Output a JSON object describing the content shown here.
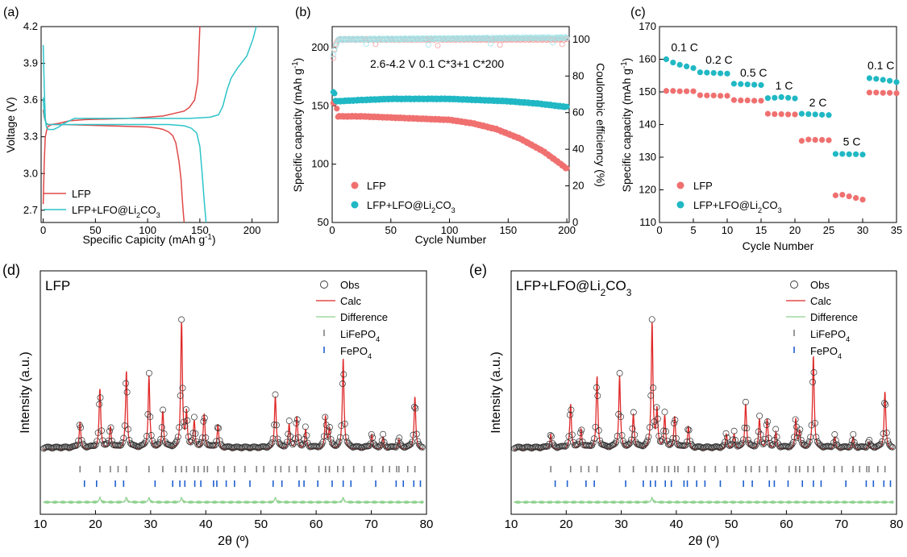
{
  "colors": {
    "lfp": "#e04848",
    "lfo": "#2ec4c8",
    "lfp_dot": "#f07070",
    "lfo_dot": "#20b8c4",
    "ce_lfp": "#f4a0a0",
    "ce_lfo": "#9ee4e8",
    "obs": "#333333",
    "calc": "#e02828",
    "diff": "#8fd08f",
    "tick_lfp": "#808080",
    "tick_fepo": "#1e5fcf"
  },
  "chart_data": [
    {
      "panel": "(a)",
      "type": "line",
      "xlabel": "Specific Capicity (mAh g",
      "xlabel_sup": "-1",
      "xlabel_end": ")",
      "ylabel": "Voltage (V)",
      "xlim": [
        -2,
        225
      ],
      "ylim": [
        2.6,
        4.2
      ],
      "xticks": [
        "0",
        "50",
        "100",
        "150",
        "200"
      ],
      "yticks": [
        "2.7",
        "3.0",
        "3.3",
        "3.6",
        "3.9",
        "4.2"
      ],
      "legend": {
        "placement": "bottom-left",
        "entries": [
          "LFP",
          "LFP+LFO@Li2CO3"
        ],
        "lfo_main": "LFP+LFO@Li",
        "lfo_sub": "2",
        "lfo_end": "CO",
        "lfo_sub2": "3"
      },
      "series": [
        {
          "name": "LFP",
          "curves": [
            {
              "x": [
                0,
                1,
                2,
                3,
                4,
                6,
                10,
                20,
                40,
                60,
                80,
                100,
                110,
                115,
                120,
                124,
                127,
                130,
                132,
                133,
                134,
                135
              ],
              "y": [
                3.52,
                3.46,
                3.43,
                3.41,
                3.4,
                3.4,
                3.4,
                3.4,
                3.395,
                3.39,
                3.385,
                3.38,
                3.37,
                3.36,
                3.34,
                3.31,
                3.25,
                3.1,
                2.95,
                2.82,
                2.7,
                2.6
              ]
            },
            {
              "x": [
                0,
                1,
                2,
                4,
                8,
                15,
                25,
                40,
                60,
                80,
                100,
                115,
                125,
                135,
                140,
                145,
                148,
                150
              ],
              "y": [
                2.75,
                3.1,
                3.3,
                3.38,
                3.4,
                3.41,
                3.43,
                3.44,
                3.445,
                3.45,
                3.46,
                3.47,
                3.49,
                3.51,
                3.54,
                3.6,
                3.75,
                4.2
              ]
            }
          ]
        },
        {
          "name": "LFP+LFO@Li2CO3",
          "curves": [
            {
              "x": [
                0,
                1,
                2,
                3,
                5,
                10,
                20,
                30,
                40,
                60,
                80,
                100,
                120,
                135,
                142,
                147,
                150,
                152,
                154,
                156
              ],
              "y": [
                3.62,
                3.48,
                3.43,
                3.41,
                3.4,
                3.4,
                3.4,
                3.4,
                3.4,
                3.4,
                3.4,
                3.4,
                3.4,
                3.39,
                3.37,
                3.33,
                3.22,
                3.02,
                2.8,
                2.6
              ]
            },
            {
              "x": [
                0,
                1,
                2,
                3,
                5,
                10,
                15,
                20,
                25,
                30,
                50,
                80,
                110,
                140,
                160,
                168,
                172,
                176,
                180,
                186,
                195,
                201,
                204
              ],
              "y": [
                4.05,
                3.7,
                3.45,
                3.38,
                3.36,
                3.36,
                3.38,
                3.41,
                3.43,
                3.45,
                3.45,
                3.45,
                3.45,
                3.45,
                3.46,
                3.48,
                3.55,
                3.68,
                3.78,
                3.86,
                3.96,
                4.1,
                4.2
              ]
            }
          ]
        }
      ]
    },
    {
      "panel": "(b)",
      "type": "scatter",
      "xlabel": "Cycle Number",
      "ylabel": "Specific capacity (mAh g",
      "ylabel_sup": "-1",
      "ylabel_end": ")",
      "y2label": "Coulombic efficiency (%)",
      "xlim": [
        0,
        202
      ],
      "ylim": [
        50,
        218
      ],
      "y2lim": [
        0,
        107
      ],
      "xticks": [
        "0",
        "50",
        "100",
        "150",
        "200"
      ],
      "yticks": [
        "50",
        "100",
        "150",
        "200"
      ],
      "y2ticks": [
        "0",
        "20",
        "40",
        "60",
        "80",
        "100"
      ],
      "annotation": "2.6-4.2 V  0.1 C*3+1 C*200",
      "legend": {
        "placement": "bottom-left",
        "entries": [
          "LFP",
          "LFP+LFO@Li2CO3"
        ],
        "lfo_main": "LFP+LFO@Li",
        "lfo_sub": "2",
        "lfo_end": "CO",
        "lfo_sub2": "3"
      },
      "series": [
        {
          "name": "LFP",
          "points": [
            [
              1,
              152
            ],
            [
              3,
              154
            ],
            [
              5,
              141
            ],
            [
              25,
              141
            ],
            [
              50,
              140
            ],
            [
              75,
              139
            ],
            [
              100,
              138
            ],
            [
              120,
              135
            ],
            [
              140,
              130
            ],
            [
              160,
              122
            ],
            [
              180,
              111
            ],
            [
              195,
              100
            ],
            [
              200,
              96
            ]
          ]
        },
        {
          "name": "LFP+LFO@Li2CO3",
          "points": [
            [
              1,
              162
            ],
            [
              2,
              161
            ],
            [
              3,
              154
            ],
            [
              5,
              154
            ],
            [
              25,
              155
            ],
            [
              50,
              156
            ],
            [
              75,
              156
            ],
            [
              100,
              156
            ],
            [
              125,
              155
            ],
            [
              150,
              154
            ],
            [
              175,
              152
            ],
            [
              200,
              149
            ]
          ]
        },
        {
          "name": "CE LFP",
          "axis": "y2",
          "points": [
            [
              1,
              90
            ],
            [
              2,
              95
            ],
            [
              3,
              97
            ],
            [
              5,
              100
            ],
            [
              200,
              100
            ]
          ]
        },
        {
          "name": "CE LFP+LFO@Li2CO3",
          "axis": "y2",
          "points": [
            [
              1,
              92
            ],
            [
              3,
              96
            ],
            [
              5,
              100
            ],
            [
              200,
              101
            ]
          ]
        }
      ]
    },
    {
      "panel": "(c)",
      "type": "scatter",
      "xlabel": "Cycle Number",
      "ylabel": "Specific capacity (mAh g",
      "ylabel_sup": "-1",
      "ylabel_end": ")",
      "xlim": [
        0,
        35
      ],
      "ylim": [
        110,
        170
      ],
      "xticks": [
        "0",
        "5",
        "10",
        "15",
        "20",
        "25",
        "30",
        "35"
      ],
      "yticks": [
        "110",
        "120",
        "130",
        "140",
        "150",
        "160",
        "170"
      ],
      "rate_labels": [
        {
          "text": "0.1 C",
          "x": 3.7,
          "y": 162.5
        },
        {
          "text": "0.2 C",
          "x": 8.8,
          "y": 158.6
        },
        {
          "text": "0.5 C",
          "x": 13.9,
          "y": 154.7
        },
        {
          "text": "1 C",
          "x": 18.4,
          "y": 150.7
        },
        {
          "text": "2 C",
          "x": 23.4,
          "y": 145.5
        },
        {
          "text": "5 C",
          "x": 28.4,
          "y": 133.6
        },
        {
          "text": "0.1 C",
          "x": 32.7,
          "y": 156.9
        }
      ],
      "legend": {
        "placement": "bottom-left",
        "entries": [
          "LFP",
          "LFP+LFO@Li2CO3"
        ],
        "lfo_main": "LFP+LFO@Li",
        "lfo_sub": "2",
        "lfo_end": "CO",
        "lfo_sub2": "3"
      },
      "series": [
        {
          "name": "LFP",
          "x": [
            1,
            2,
            3,
            4,
            5,
            6,
            7,
            8,
            9,
            10,
            11,
            12,
            13,
            14,
            15,
            16,
            17,
            18,
            19,
            20,
            21,
            22,
            23,
            24,
            25,
            26,
            27,
            28,
            29,
            30,
            31,
            32,
            33,
            34,
            35
          ],
          "y": [
            150.3,
            150.3,
            150.2,
            150.2,
            150.2,
            149.0,
            148.9,
            148.9,
            148.8,
            148.8,
            147.5,
            147.4,
            147.4,
            147.3,
            147.3,
            143.3,
            143.2,
            143.2,
            143.1,
            143.1,
            135.0,
            135.4,
            135.3,
            135.3,
            135.2,
            118.3,
            118.5,
            118.0,
            117.5,
            117.0,
            149.8,
            149.8,
            149.7,
            149.7,
            149.6
          ]
        },
        {
          "name": "LFP+LFO@Li2CO3",
          "x": [
            1,
            2,
            3,
            4,
            5,
            6,
            7,
            8,
            9,
            10,
            11,
            12,
            13,
            14,
            15,
            16,
            17,
            18,
            19,
            20,
            21,
            22,
            23,
            24,
            25,
            26,
            27,
            28,
            29,
            30,
            31,
            32,
            33,
            34,
            35
          ],
          "y": [
            160.0,
            159.0,
            158.3,
            157.8,
            157.3,
            156.0,
            155.9,
            155.8,
            155.7,
            155.6,
            152.5,
            152.4,
            152.3,
            152.2,
            152.1,
            148.1,
            148.2,
            148.4,
            148.2,
            148.0,
            143.3,
            143.2,
            143.1,
            143.0,
            142.9,
            131.0,
            131.0,
            130.9,
            130.9,
            130.8,
            154.2,
            154.0,
            153.7,
            153.4,
            153.0
          ]
        }
      ]
    },
    {
      "panel": "(d)",
      "type": "line",
      "title": "LFP",
      "xlabel": "2θ (º)",
      "ylabel": "Intensity (a.u.)",
      "xlim": [
        10,
        80
      ],
      "xticks": [
        "10",
        "20",
        "30",
        "40",
        "50",
        "60",
        "70",
        "80"
      ],
      "legend": {
        "placement": "top-right",
        "entries": [
          "Obs",
          "Calc",
          "Difference",
          "LiFePO4",
          "FePO4"
        ],
        "lifepo_main": "LiFePO",
        "lifepo_sub": "4",
        "fepo_main": "FePO",
        "fepo_sub": "4"
      },
      "peaks": [
        {
          "x": 17.2,
          "h": 0.22
        },
        {
          "x": 20.8,
          "h": 0.48
        },
        {
          "x": 22.7,
          "h": 0.18
        },
        {
          "x": 25.6,
          "h": 0.62
        },
        {
          "x": 29.7,
          "h": 0.58
        },
        {
          "x": 32.2,
          "h": 0.3
        },
        {
          "x": 35.6,
          "h": 1.0
        },
        {
          "x": 36.5,
          "h": 0.28
        },
        {
          "x": 37.9,
          "h": 0.22
        },
        {
          "x": 39.7,
          "h": 0.28
        },
        {
          "x": 42.2,
          "h": 0.2
        },
        {
          "x": 52.6,
          "h": 0.42
        },
        {
          "x": 55.1,
          "h": 0.2
        },
        {
          "x": 56.5,
          "h": 0.26
        },
        {
          "x": 58.1,
          "h": 0.16
        },
        {
          "x": 61.7,
          "h": 0.26
        },
        {
          "x": 62.4,
          "h": 0.16
        },
        {
          "x": 64.9,
          "h": 0.72
        },
        {
          "x": 70.1,
          "h": 0.12
        },
        {
          "x": 72.1,
          "h": 0.1
        },
        {
          "x": 75.0,
          "h": 0.08
        },
        {
          "x": 77.9,
          "h": 0.42
        }
      ],
      "diff_spikes": [
        20.8,
        25.6,
        29.7,
        35.6,
        52.6,
        64.9
      ],
      "ticks_lifepo4": [
        17.2,
        20.8,
        22.7,
        24.1,
        25.6,
        29.7,
        32.2,
        34.5,
        35.6,
        36.5,
        37.9,
        38.6,
        39.7,
        40.3,
        42.2,
        43.3,
        45.2,
        47.1,
        49.2,
        50.5,
        52.6,
        53.6,
        55.1,
        56.5,
        58.1,
        60.5,
        61.7,
        62.4,
        63.9,
        64.9,
        66.8,
        68.7,
        70.1,
        72.1,
        73.3,
        74.6,
        75.0,
        76.6,
        77.9
      ],
      "ticks_fepo4": [
        18.0,
        20.2,
        23.6,
        25.1,
        30.8,
        34.0,
        35.3,
        36.2,
        38.0,
        39.1,
        41.4,
        42.0,
        43.7,
        45.2,
        48.0,
        52.2,
        53.8,
        56.9,
        57.8,
        60.3,
        62.9,
        64.9,
        66.3,
        70.8,
        74.5,
        75.8,
        77.7,
        78.9
      ]
    },
    {
      "panel": "(e)",
      "type": "line",
      "title": "LFP+LFO@Li2CO3",
      "title_main": "LFP+LFO@Li",
      "title_sub": "2",
      "title_end": "CO",
      "title_sub2": "3",
      "xlabel": "2θ (º)",
      "ylabel": "Intensity (a.u.)",
      "xlim": [
        10,
        80
      ],
      "xticks": [
        "10",
        "20",
        "30",
        "40",
        "50",
        "60",
        "70",
        "80"
      ],
      "legend": {
        "placement": "top-right",
        "entries": [
          "Obs",
          "Calc",
          "Difference",
          "LiFePO4",
          "FePO4"
        ],
        "lifepo_main": "LiFePO",
        "lifepo_sub": "4",
        "fepo_main": "FePO",
        "fepo_sub": "4"
      },
      "peaks": [
        {
          "x": 17.2,
          "h": 0.12
        },
        {
          "x": 20.8,
          "h": 0.36
        },
        {
          "x": 22.7,
          "h": 0.16
        },
        {
          "x": 25.6,
          "h": 0.58
        },
        {
          "x": 29.7,
          "h": 0.58
        },
        {
          "x": 32.2,
          "h": 0.28
        },
        {
          "x": 35.6,
          "h": 1.0
        },
        {
          "x": 36.5,
          "h": 0.3
        },
        {
          "x": 37.9,
          "h": 0.26
        },
        {
          "x": 39.7,
          "h": 0.26
        },
        {
          "x": 42.2,
          "h": 0.18
        },
        {
          "x": 49.1,
          "h": 0.12
        },
        {
          "x": 50.5,
          "h": 0.12
        },
        {
          "x": 52.6,
          "h": 0.36
        },
        {
          "x": 55.1,
          "h": 0.24
        },
        {
          "x": 56.5,
          "h": 0.24
        },
        {
          "x": 58.1,
          "h": 0.14
        },
        {
          "x": 61.7,
          "h": 0.24
        },
        {
          "x": 62.4,
          "h": 0.14
        },
        {
          "x": 64.9,
          "h": 0.74
        },
        {
          "x": 68.8,
          "h": 0.1
        },
        {
          "x": 72.1,
          "h": 0.1
        },
        {
          "x": 75.0,
          "h": 0.06
        },
        {
          "x": 77.9,
          "h": 0.46
        }
      ],
      "diff_spikes": [
        35.6
      ],
      "ticks_lifepo4": [
        17.2,
        20.8,
        22.7,
        24.1,
        25.6,
        29.7,
        32.2,
        34.5,
        35.6,
        36.5,
        37.9,
        38.6,
        39.7,
        40.3,
        42.2,
        43.3,
        45.2,
        47.1,
        49.2,
        50.5,
        52.6,
        53.6,
        55.1,
        56.5,
        58.1,
        60.5,
        61.7,
        62.4,
        63.9,
        64.9,
        66.8,
        68.7,
        70.1,
        72.1,
        73.3,
        74.6,
        75.0,
        76.6,
        77.9
      ],
      "ticks_fepo4": [
        18.0,
        20.2,
        23.6,
        25.1,
        30.8,
        34.0,
        35.3,
        36.2,
        38.0,
        39.1,
        41.4,
        42.0,
        43.7,
        45.2,
        48.0,
        52.2,
        53.8,
        56.9,
        57.8,
        60.3,
        62.9,
        64.9,
        66.3,
        70.8,
        74.5,
        75.8,
        77.7,
        78.9
      ]
    }
  ]
}
